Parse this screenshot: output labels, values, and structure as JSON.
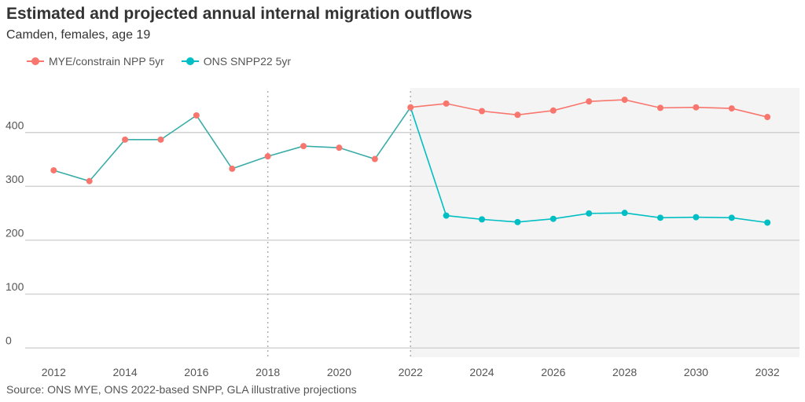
{
  "header": {
    "title": "Estimated and projected annual internal migration outflows",
    "subtitle": "Camden, females, age 19"
  },
  "footer": {
    "source": "Source: ONS MYE, ONS 2022-based SNPP, GLA illustrative projections"
  },
  "chart_data": {
    "type": "line",
    "title": "Estimated and projected annual internal migration outflows",
    "subtitle": "Camden, females, age 19",
    "xlabel": "",
    "ylabel": "",
    "xlim": [
      2011.2,
      2032.9
    ],
    "ylim": [
      -18,
      482
    ],
    "x_ticks": [
      2012,
      2014,
      2016,
      2018,
      2020,
      2022,
      2024,
      2026,
      2028,
      2030,
      2032
    ],
    "y_ticks": [
      0,
      100,
      200,
      300,
      400
    ],
    "grid": "horizontal",
    "legend_position": "top-left",
    "vertical_reference_lines": [
      2018,
      2022
    ],
    "projection_shading_from": 2022,
    "series": [
      {
        "name": "MYE/constrain NPP 5yr",
        "color": "#F8766D",
        "x": [
          2012,
          2013,
          2014,
          2015,
          2016,
          2017,
          2018,
          2019,
          2020,
          2021,
          2022,
          2023,
          2024,
          2025,
          2026,
          2027,
          2028,
          2029,
          2030,
          2031,
          2032
        ],
        "values": [
          329,
          309,
          386,
          386,
          431,
          332,
          355,
          374,
          371,
          350,
          446,
          453,
          439,
          432,
          440,
          457,
          460,
          445,
          446,
          444,
          428
        ]
      },
      {
        "name": "ONS SNPP22 5yr",
        "color": "#00BFC4",
        "x": [
          2012,
          2013,
          2014,
          2015,
          2016,
          2017,
          2018,
          2019,
          2020,
          2021,
          2022,
          2023,
          2024,
          2025,
          2026,
          2027,
          2028,
          2029,
          2030,
          2031,
          2032
        ],
        "values": [
          329,
          309,
          386,
          386,
          431,
          332,
          355,
          374,
          371,
          350,
          446,
          245,
          238,
          233,
          239,
          249,
          250,
          241,
          242,
          241,
          232
        ]
      }
    ],
    "history_line_color": "#3AADA8"
  }
}
